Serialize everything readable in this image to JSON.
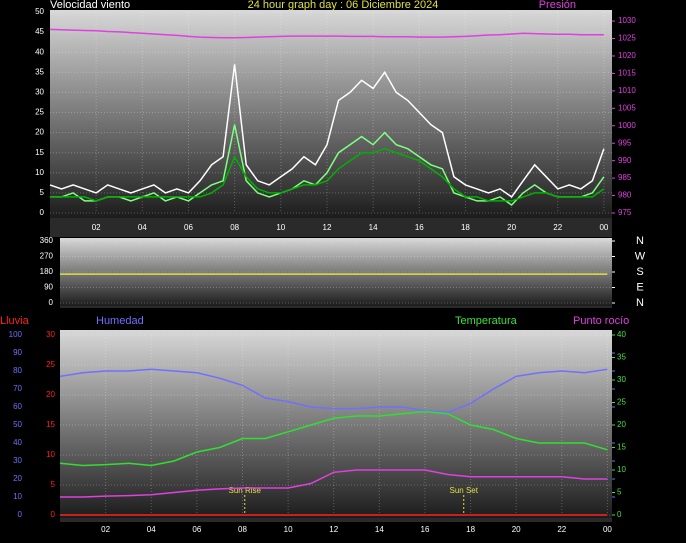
{
  "chart_data": [
    {
      "type": "line",
      "title": "24 hour graph day : 06 Diciembre 2024",
      "x": [
        0,
        0.5,
        1,
        1.5,
        2,
        2.5,
        3,
        3.5,
        4,
        4.5,
        5,
        5.5,
        6,
        6.5,
        7,
        7.5,
        8,
        8.5,
        9,
        9.5,
        10,
        10.5,
        11,
        11.5,
        12,
        12.5,
        13,
        13.5,
        14,
        14.5,
        15,
        15.5,
        16,
        16.5,
        17,
        17.5,
        18,
        18.5,
        19,
        19.5,
        20,
        20.5,
        21,
        21.5,
        22,
        22.5,
        23,
        23.5,
        24
      ],
      "xlim": [
        0,
        24.35
      ],
      "xticks": [
        {
          "value": 2,
          "label": "02"
        },
        {
          "value": 4,
          "label": "04"
        },
        {
          "value": 6,
          "label": "06"
        },
        {
          "value": 8,
          "label": "08"
        },
        10,
        12,
        14,
        16,
        18,
        20,
        22,
        {
          "value": 24,
          "label": "00"
        }
      ],
      "axes": [
        {
          "label": "Velocidad viento",
          "color": "#ffffff",
          "lim": [
            0,
            50
          ],
          "ticks": [
            0,
            5,
            10,
            15,
            20,
            25,
            30,
            35,
            40,
            45,
            50
          ]
        },
        {
          "label": "Presión",
          "color": "#e040e0",
          "lim": [
            975,
            1032.6
          ],
          "ticks": [
            975,
            980,
            985,
            990,
            995,
            1000,
            1005,
            1010,
            1015,
            1020,
            1025,
            1030
          ]
        }
      ],
      "series": [
        {
          "color": "#ffffff",
          "axis": 0,
          "values": [
            7,
            6,
            7,
            6,
            5,
            7,
            6,
            5,
            6,
            7,
            5,
            6,
            5,
            8,
            12,
            14,
            37,
            12,
            8,
            7,
            9,
            11,
            14,
            12,
            17,
            28,
            30,
            33,
            31,
            35,
            30,
            28,
            25,
            22,
            20,
            9,
            7,
            6,
            5,
            6,
            4,
            8,
            12,
            9,
            6,
            7,
            6,
            8,
            16
          ]
        },
        {
          "color": "#80ff80",
          "axis": 0,
          "values": [
            4,
            4,
            5,
            3,
            3,
            4,
            4,
            3,
            4,
            5,
            3,
            4,
            3,
            5,
            7,
            8,
            22,
            8,
            5,
            4,
            5,
            6,
            8,
            7,
            10,
            15,
            17,
            19,
            17,
            20,
            17,
            16,
            14,
            12,
            11,
            5,
            4,
            3,
            3,
            4,
            2,
            5,
            7,
            5,
            4,
            4,
            4,
            5,
            9
          ]
        },
        {
          "color": "#00b000",
          "axis": 0,
          "values": [
            4,
            4,
            4,
            4,
            3,
            4,
            4,
            4,
            4,
            4,
            4,
            4,
            4,
            4,
            5,
            7,
            14,
            9,
            6,
            5,
            5,
            6,
            7,
            7,
            8,
            11,
            13,
            15,
            15,
            16,
            15,
            14,
            13,
            11,
            9,
            6,
            4,
            4,
            3,
            3,
            3,
            4,
            5,
            5,
            4,
            4,
            4,
            4,
            6
          ]
        },
        {
          "color": "#e040e0",
          "axis": 1,
          "values": [
            1027.6,
            1027.5,
            1027.4,
            1027.3,
            1027.2,
            1027,
            1026.9,
            1026.7,
            1026.5,
            1026.3,
            1026.1,
            1025.9,
            1025.6,
            1025.4,
            1025.3,
            1025.2,
            1025.2,
            1025.3,
            1025.4,
            1025.5,
            1025.6,
            1025.7,
            1025.7,
            1025.7,
            1025.7,
            1025.7,
            1025.6,
            1025.6,
            1025.6,
            1025.5,
            1025.5,
            1025.5,
            1025.4,
            1025.4,
            1025.4,
            1025.5,
            1025.6,
            1025.8,
            1026,
            1026.1,
            1026.3,
            1026.5,
            1026.4,
            1026.3,
            1026.2,
            1026.2,
            1026.1,
            1026.1,
            1026.1
          ]
        }
      ]
    },
    {
      "type": "line",
      "x": [
        0,
        1,
        2,
        3,
        4,
        5,
        6,
        7,
        8,
        9,
        10,
        11,
        12,
        13,
        14,
        15,
        16,
        17,
        18,
        19,
        20,
        21,
        22,
        23,
        24
      ],
      "xlim": [
        0,
        24.2
      ],
      "axes": [
        {
          "color": "#ffffff",
          "lim": [
            0,
            360
          ],
          "ticks": [
            0,
            90,
            180,
            270,
            360
          ]
        },
        {
          "color": "#ffffff",
          "lim": [
            0,
            360
          ],
          "ticks": [
            {
              "value": 360,
              "label": "N"
            },
            {
              "value": 270,
              "label": "W"
            },
            {
              "value": 180,
              "label": "S"
            },
            {
              "value": 90,
              "label": "E"
            },
            {
              "value": 0,
              "label": "N"
            }
          ]
        }
      ],
      "series": [
        {
          "color": "#e0e040",
          "axis": 0,
          "values": [
            168,
            168,
            168,
            168,
            168,
            168,
            168,
            168,
            168,
            168,
            168,
            168,
            168,
            168,
            168,
            168,
            168,
            168,
            168,
            168,
            168,
            168,
            168,
            168,
            168
          ]
        }
      ]
    },
    {
      "type": "line",
      "x": [
        0,
        1,
        2,
        3,
        4,
        5,
        6,
        7,
        8,
        9,
        10,
        11,
        12,
        13,
        14,
        15,
        16,
        17,
        18,
        19,
        20,
        21,
        22,
        23,
        24
      ],
      "xlim": [
        0,
        24.2
      ],
      "xticks": [
        {
          "value": 2,
          "label": "02"
        },
        {
          "value": 4,
          "label": "04"
        },
        {
          "value": 6,
          "label": "06"
        },
        {
          "value": 8,
          "label": "08"
        },
        10,
        12,
        14,
        16,
        18,
        20,
        22,
        {
          "value": 24,
          "label": "00"
        }
      ],
      "axes": [
        {
          "label": "Lluvia",
          "color": "#ff2020",
          "lim": [
            0,
            30
          ],
          "ticks": [
            0,
            5,
            10,
            15,
            20,
            25,
            30
          ]
        },
        {
          "label": "Humedad",
          "color": "#7070ff",
          "lim": [
            0,
            100
          ],
          "ticks": [
            0,
            10,
            20,
            30,
            40,
            50,
            60,
            70,
            80,
            90,
            100
          ]
        },
        {
          "label": "Temperatura",
          "color": "#40e040",
          "lim": [
            0,
            40
          ],
          "ticks": [
            0,
            5,
            10,
            15,
            20,
            25,
            30,
            35,
            40
          ]
        },
        {
          "label": "Punto rocío",
          "color": "#e040e0",
          "lim": [
            0,
            40
          ]
        }
      ],
      "series": [
        {
          "color": "#ff2020",
          "axis": 0,
          "values": [
            0,
            0,
            0,
            0,
            0,
            0,
            0,
            0,
            0,
            0,
            0,
            0,
            0,
            0,
            0,
            0,
            0,
            0,
            0,
            0,
            0,
            0,
            0,
            0,
            0
          ]
        },
        {
          "color": "#7070ff",
          "axis": 1,
          "values": [
            77,
            79,
            80,
            80,
            81,
            80,
            79,
            76,
            72,
            65,
            63,
            60,
            59,
            59,
            60,
            60,
            58,
            57,
            62,
            70,
            77,
            79,
            80,
            79,
            81
          ]
        },
        {
          "color": "#30e030",
          "axis": 2,
          "values": [
            11.5,
            11,
            11.2,
            11.5,
            11,
            12,
            14,
            15,
            17,
            17,
            18.5,
            20,
            21.5,
            22,
            22,
            22.5,
            23,
            22.5,
            20,
            19,
            17,
            16,
            16,
            16,
            14.5
          ]
        },
        {
          "color": "#e040e0",
          "axis": 3,
          "values": [
            4,
            4,
            4.2,
            4.3,
            4.5,
            5,
            5.5,
            5.8,
            6,
            6,
            6,
            7,
            9.5,
            10,
            10,
            10,
            10,
            9,
            8.5,
            8.5,
            8.5,
            8.5,
            8.5,
            8,
            8
          ]
        }
      ],
      "annotations": [
        {
          "text": "Sun Rise",
          "x": 8.1
        },
        {
          "text": "Sun Set",
          "x": 17.7
        }
      ]
    }
  ]
}
